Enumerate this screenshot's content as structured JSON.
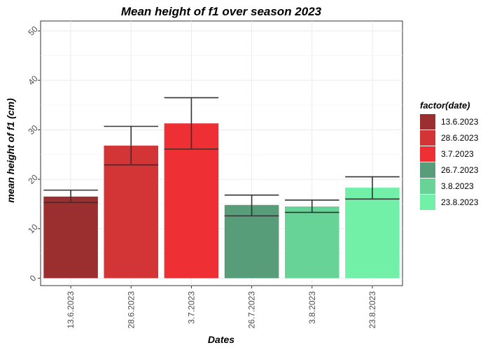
{
  "chart_data": {
    "type": "bar",
    "title": "Mean height of f1 over season 2023",
    "xlabel": "Dates",
    "ylabel": "mean height of f1 (cm)",
    "categories": [
      "13.6.2023",
      "28.6.2023",
      "3.7.2023",
      "26.7.2023",
      "3.8.2023",
      "23.8.2023"
    ],
    "values": [
      16.5,
      26.8,
      31.3,
      14.8,
      14.5,
      18.3
    ],
    "error_low": [
      15.3,
      22.9,
      26.1,
      12.6,
      13.3,
      16.0
    ],
    "error_high": [
      17.8,
      30.7,
      36.5,
      16.8,
      15.8,
      20.5
    ],
    "colors": [
      "#9b2f30",
      "#d33436",
      "#ee2f33",
      "#579d79",
      "#67d396",
      "#72f0a8"
    ],
    "ylim": [
      -1.5,
      52
    ],
    "yticks": [
      0,
      10,
      20,
      30,
      40,
      50
    ],
    "ytick_labels": [
      "0",
      "10",
      "20",
      "30",
      "40",
      "50"
    ],
    "grid": true,
    "legend": {
      "title": "factor(date)",
      "position": "right",
      "entries": [
        "13.6.2023",
        "28.6.2023",
        "3.7.2023",
        "26.7.2023",
        "3.8.2023",
        "23.8.2023"
      ]
    }
  }
}
